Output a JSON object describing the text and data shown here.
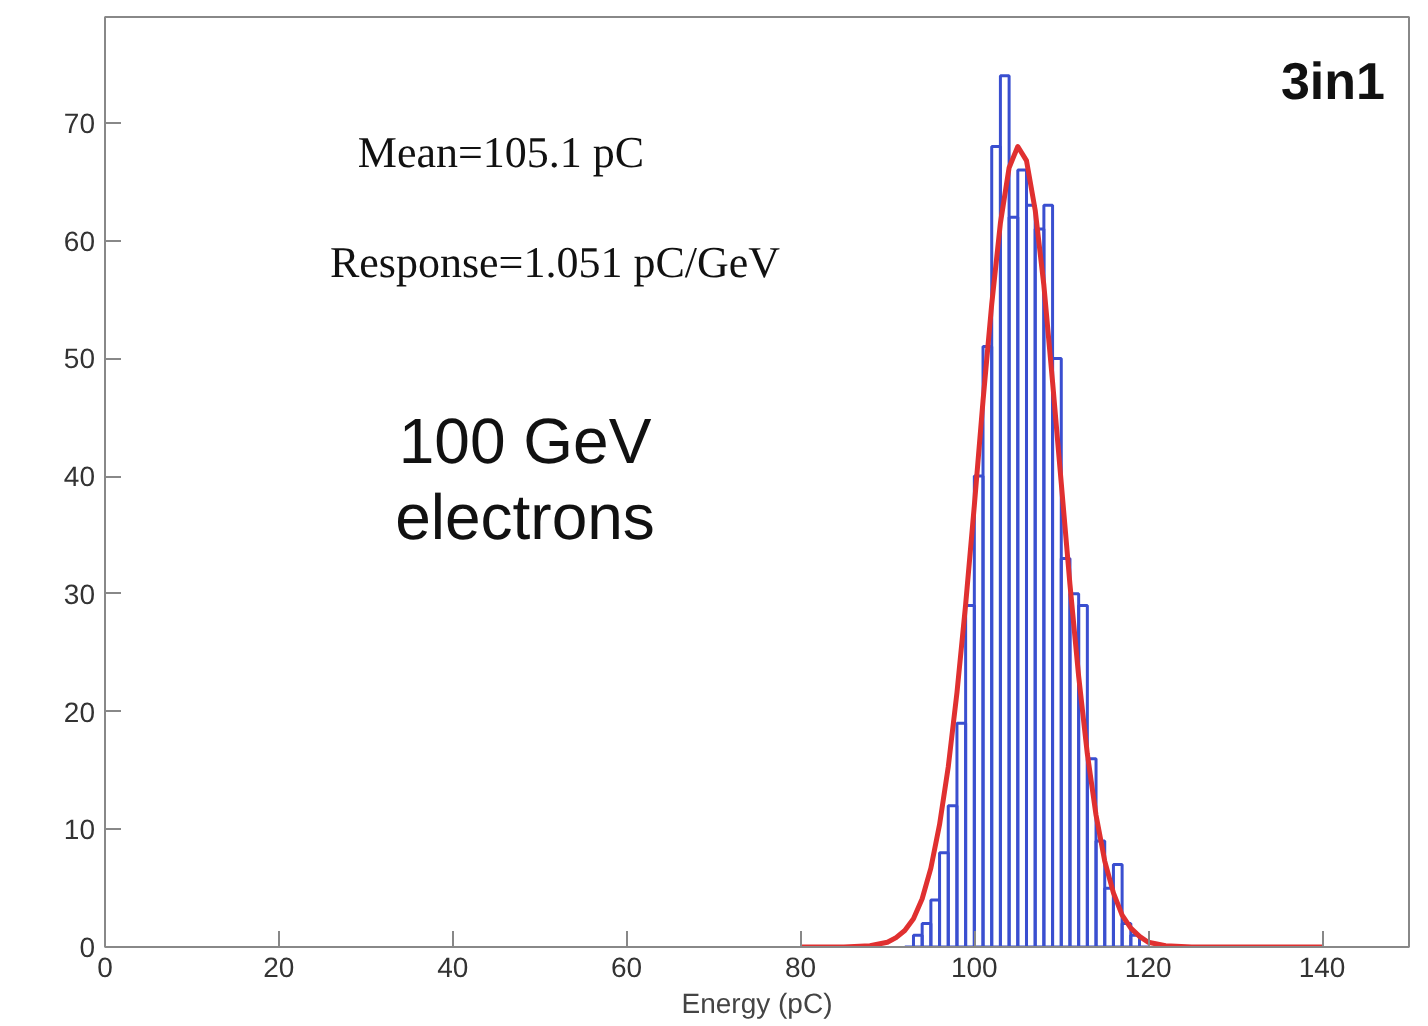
{
  "chart_data": {
    "type": "histogram",
    "xlabel": "Energy (pC)",
    "annotations": [
      "3in1",
      "Mean=105.1 pC",
      "Response=1.051 pC/GeV",
      "100 GeV\nelectrons"
    ],
    "xlim": [
      0,
      150
    ],
    "ylim": [
      0,
      79
    ],
    "xticks": [
      0,
      20,
      40,
      60,
      80,
      100,
      120,
      140
    ],
    "yticks": [
      0,
      10,
      20,
      30,
      40,
      50,
      60,
      70
    ],
    "grid": false,
    "series": [
      {
        "color": "#3a4fd0",
        "bins": [
          92,
          93,
          94,
          95,
          96,
          97,
          98,
          99,
          100,
          101,
          102,
          103,
          104,
          105,
          106,
          107,
          108,
          109,
          110,
          111,
          112,
          113,
          114,
          115,
          116,
          117,
          118,
          119,
          120
        ],
        "values": [
          0,
          1,
          2,
          4,
          8,
          12,
          19,
          29,
          40,
          51,
          68,
          74,
          62,
          66,
          63,
          61,
          63,
          50,
          33,
          30,
          29,
          16,
          9,
          5,
          7,
          2,
          1,
          0
        ]
      },
      {
        "type": "line",
        "color": "#e03030",
        "x": [
          80,
          85,
          88,
          90,
          91,
          92,
          93,
          94,
          95,
          96,
          97,
          98,
          99,
          100,
          101,
          102,
          103,
          104,
          105,
          106,
          107,
          108,
          109,
          110,
          111,
          112,
          113,
          114,
          115,
          116,
          117,
          118,
          119,
          120,
          122,
          125,
          130,
          140
        ],
        "values": [
          0,
          0,
          0.1,
          0.4,
          0.8,
          1.4,
          2.4,
          4.1,
          6.7,
          10.4,
          15.3,
          21.6,
          29.1,
          37.5,
          46.4,
          54.6,
          61.5,
          66.2,
          68,
          66.8,
          62.6,
          56.2,
          48,
          39.4,
          30.8,
          23,
          16.4,
          11.2,
          7.3,
          4.6,
          2.7,
          1.6,
          0.9,
          0.4,
          0.1,
          0,
          0,
          0
        ]
      }
    ]
  }
}
